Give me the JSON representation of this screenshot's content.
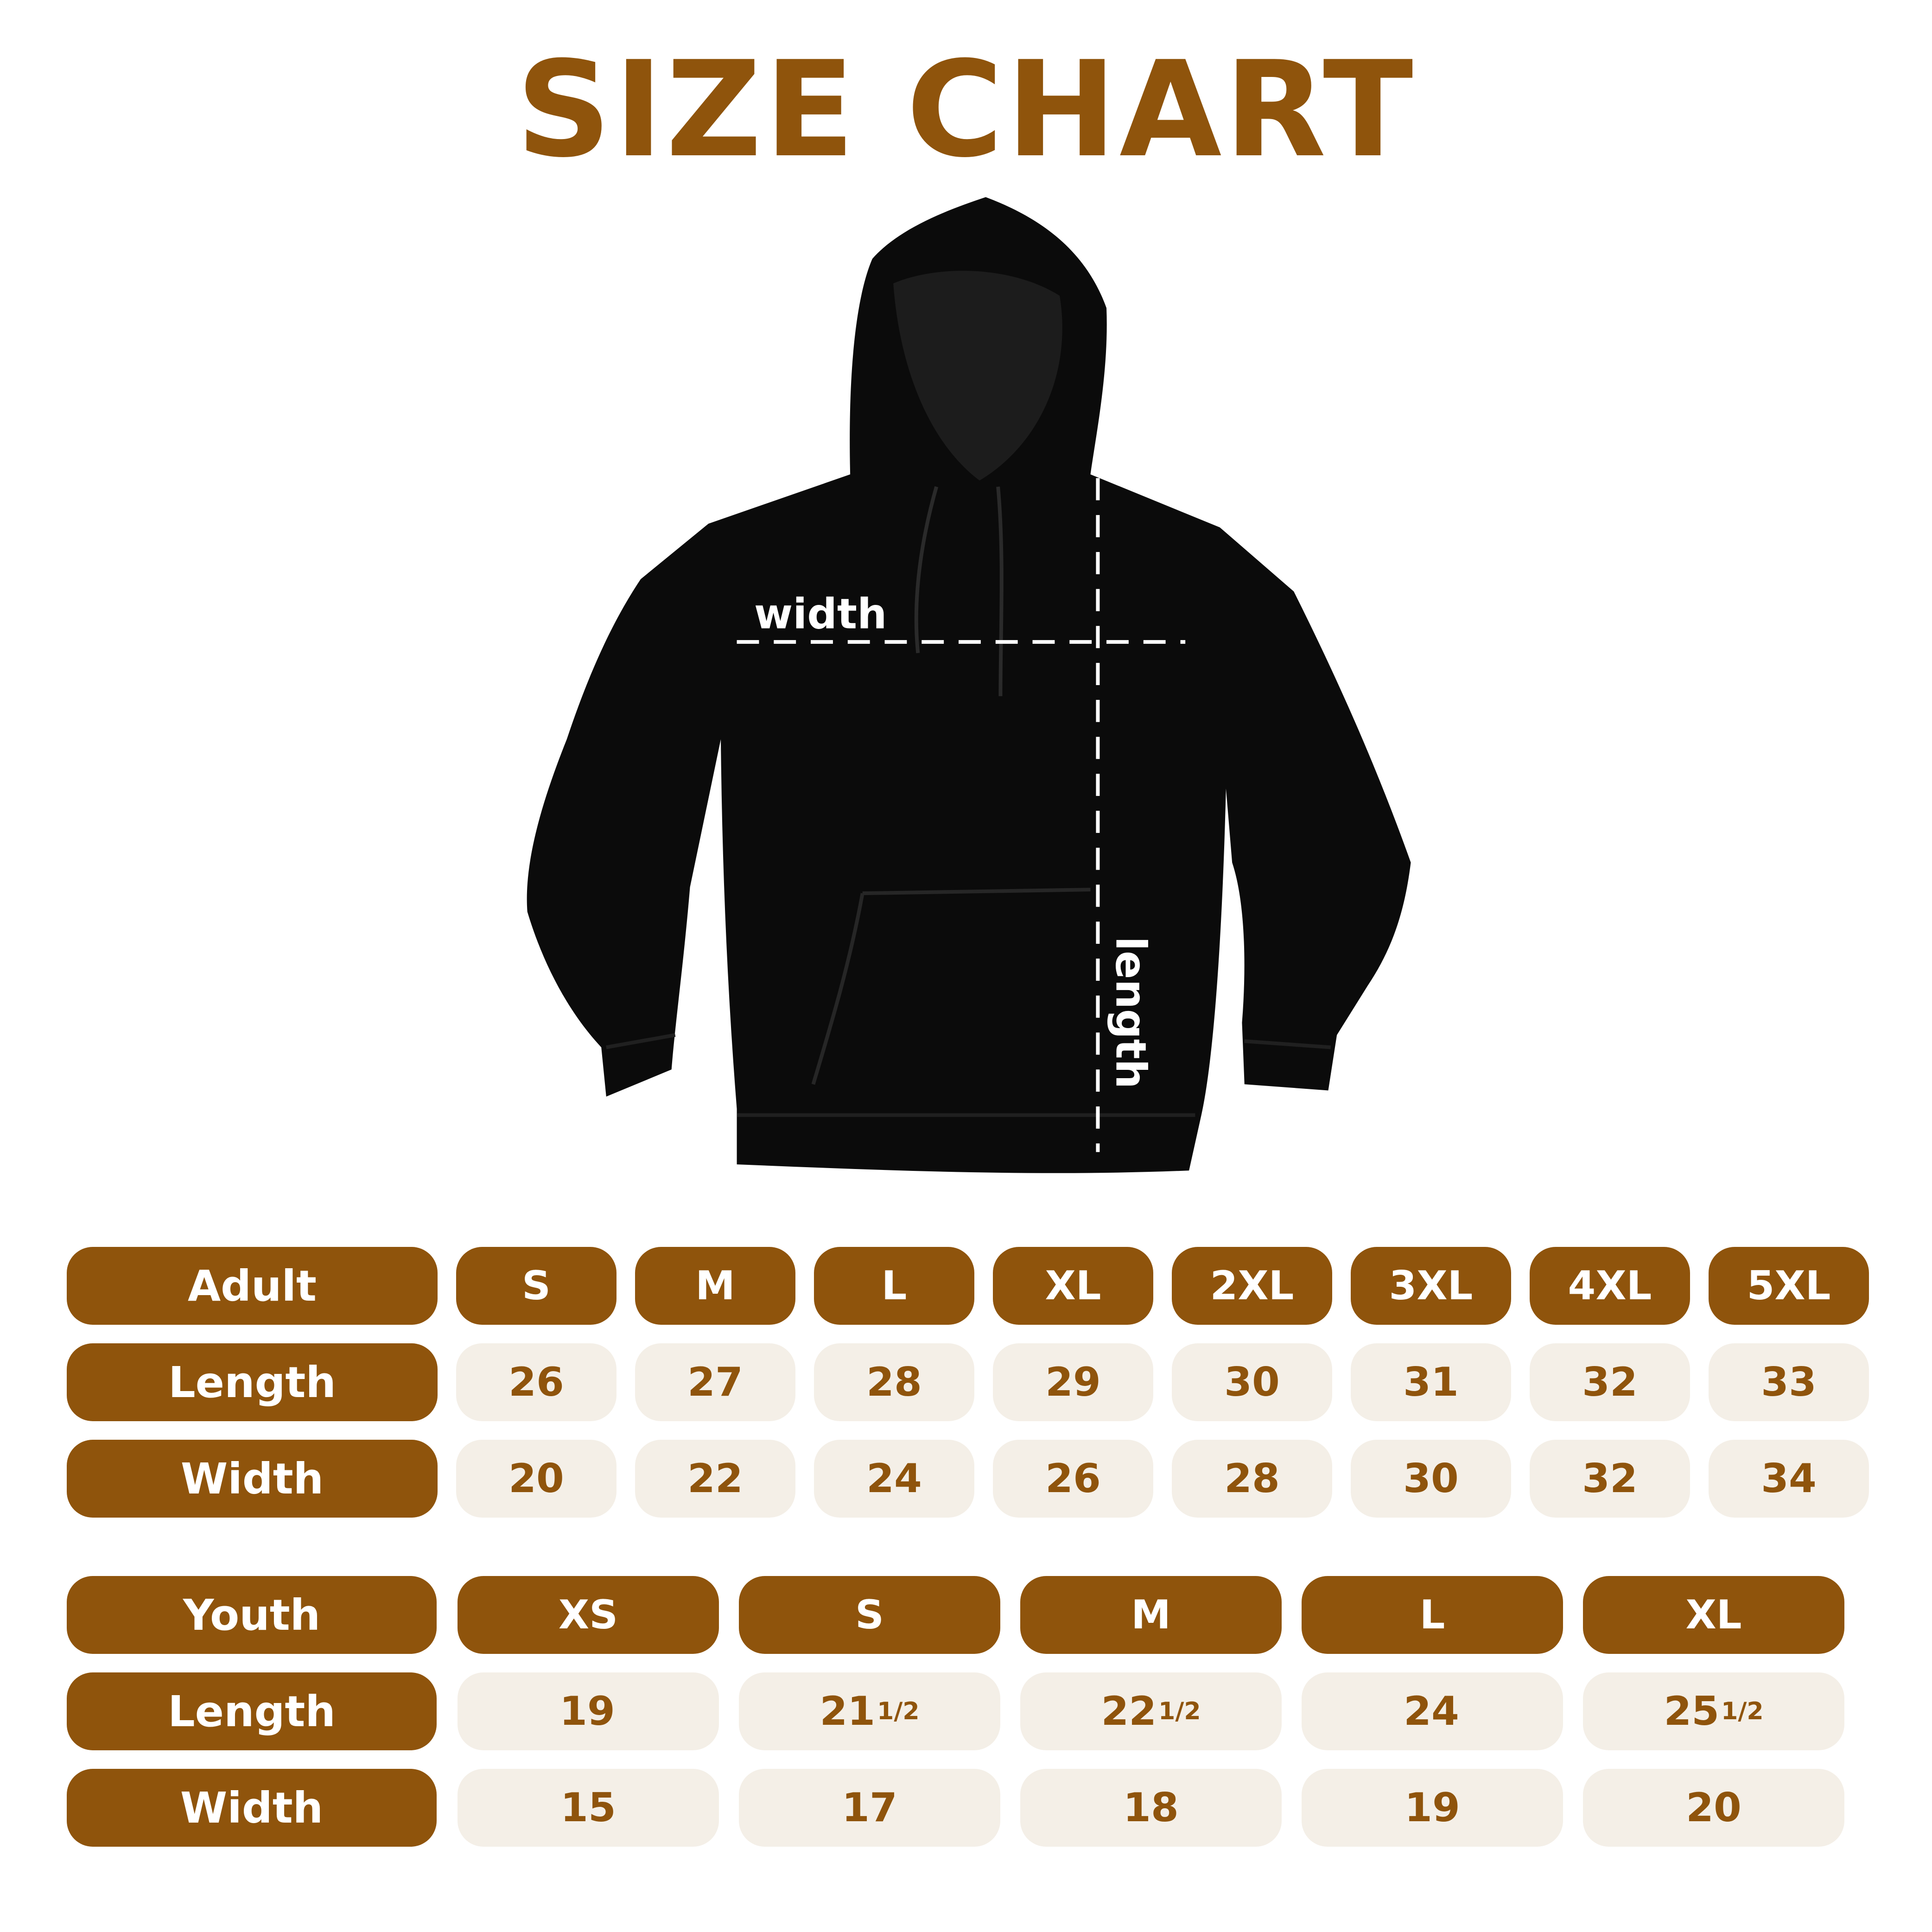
{
  "title": "SIZE CHART",
  "diagram": {
    "width_label": "width",
    "length_label": "length"
  },
  "colors": {
    "brand": "#8f540c",
    "cell_bg": "#f4efe7",
    "garment": "#0b0b0b"
  },
  "adult": {
    "header": "Adult",
    "sizes": [
      "S",
      "M",
      "L",
      "XL",
      "2XL",
      "3XL",
      "4XL",
      "5XL"
    ],
    "rows": [
      {
        "label": "Length",
        "values": [
          "26",
          "27",
          "28",
          "29",
          "30",
          "31",
          "32",
          "33"
        ]
      },
      {
        "label": "Width",
        "values": [
          "20",
          "22",
          "24",
          "26",
          "28",
          "30",
          "32",
          "34"
        ]
      }
    ]
  },
  "youth": {
    "header": "Youth",
    "sizes": [
      "XS",
      "S",
      "M",
      "L",
      "XL"
    ],
    "rows": [
      {
        "label": "Length",
        "values": [
          {
            "whole": "19",
            "frac": ""
          },
          {
            "whole": "21",
            "frac": "1/2"
          },
          {
            "whole": "22",
            "frac": "1/2"
          },
          {
            "whole": "24",
            "frac": ""
          },
          {
            "whole": "25",
            "frac": "1/2"
          }
        ]
      },
      {
        "label": "Width",
        "values": [
          {
            "whole": "15",
            "frac": ""
          },
          {
            "whole": "17",
            "frac": ""
          },
          {
            "whole": "18",
            "frac": ""
          },
          {
            "whole": "19",
            "frac": ""
          },
          {
            "whole": "20",
            "frac": ""
          }
        ]
      }
    ]
  }
}
